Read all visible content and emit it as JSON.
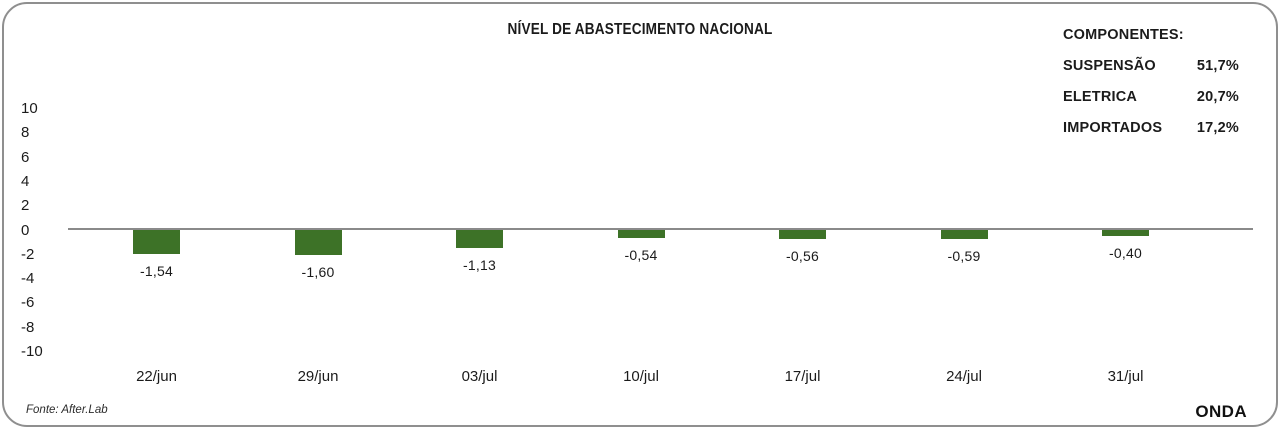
{
  "header": {
    "title": "NÍVEL DE ABASTECIMENTO NACIONAL"
  },
  "legend": {
    "heading": "COMPONENTES:",
    "items": [
      {
        "label": "SUSPENSÃO",
        "value": "51,7%"
      },
      {
        "label": "ELETRICA",
        "value": "20,7%"
      },
      {
        "label": "IMPORTADOS",
        "value": "17,2%"
      }
    ]
  },
  "footer": {
    "source": "Fonte: After.Lab",
    "brand": "ONDA"
  },
  "colors": {
    "bar": "#3d7227",
    "axis_line": "#8a8a8a",
    "frame_border": "#8f8f8f",
    "text": "#1b1b1b"
  },
  "chart_data": {
    "type": "bar",
    "title": "NÍVEL DE ABASTECIMENTO NACIONAL",
    "categories": [
      "22/jun",
      "29/jun",
      "03/jul",
      "10/jul",
      "17/jul",
      "24/jul",
      "31/jul"
    ],
    "values": [
      -1.54,
      -1.6,
      -1.13,
      -0.54,
      -0.56,
      -0.59,
      -0.4
    ],
    "value_labels": [
      "-1,54",
      "-1,60",
      "-1,13",
      "-0,54",
      "-0,56",
      "-0,59",
      "-0,40"
    ],
    "y_ticks": [
      10,
      8,
      6,
      4,
      2,
      0,
      -2,
      -4,
      -6,
      -8,
      -10
    ],
    "ylim": [
      -10,
      10
    ],
    "xlabel": "",
    "ylabel": "",
    "grid": false,
    "bar_color": "#3d7227",
    "legend_position": "top-right"
  }
}
